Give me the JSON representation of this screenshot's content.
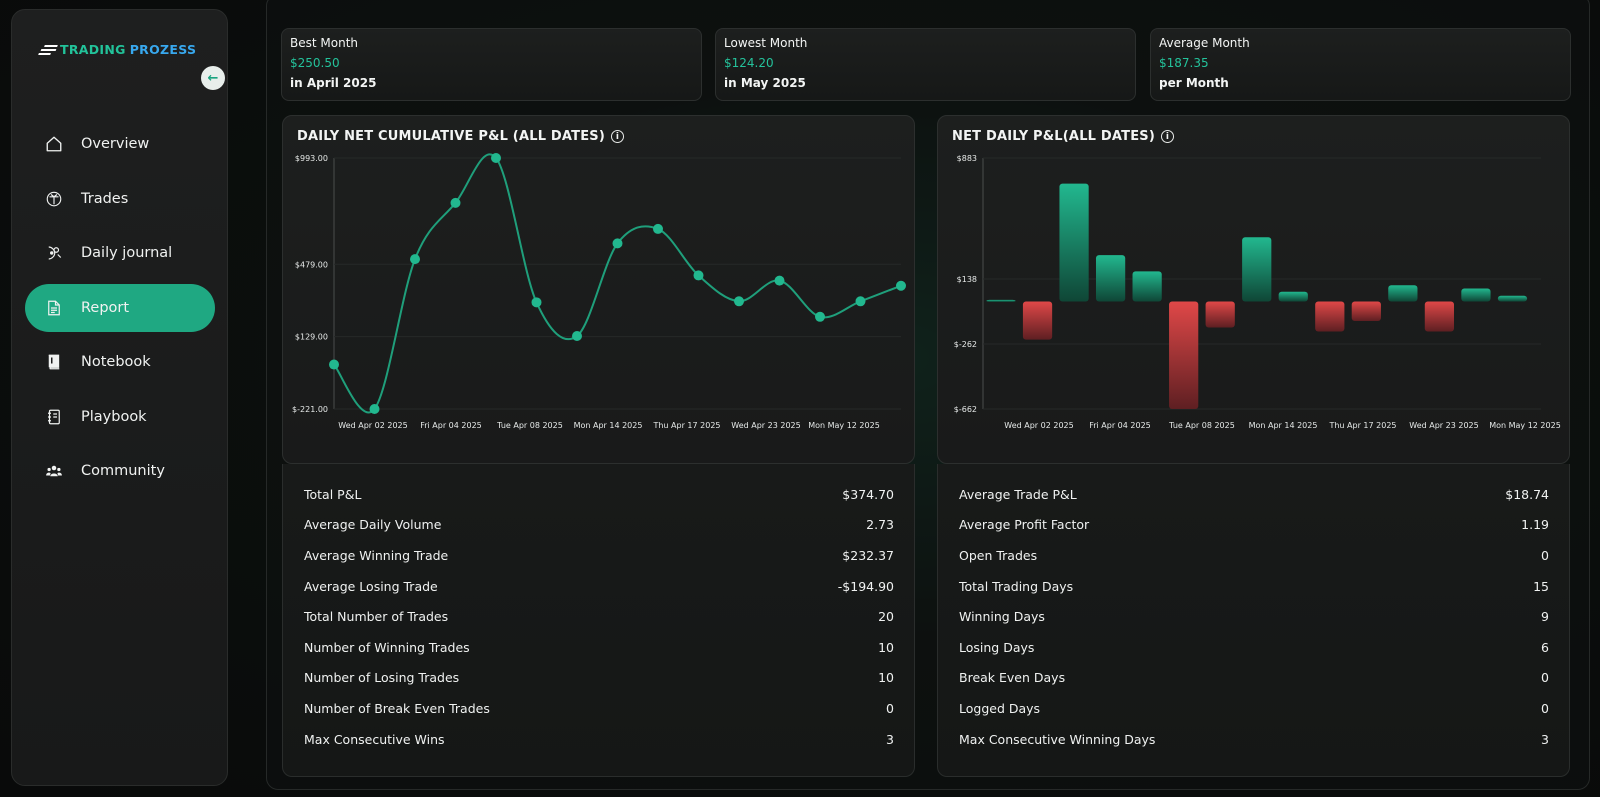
{
  "brand": {
    "part1": "TRADING",
    "part2": "PROZESS"
  },
  "collapse_icon": "arrow-left-icon",
  "nav": [
    {
      "label": "Overview",
      "icon": "home-icon",
      "active": false
    },
    {
      "label": "Trades",
      "icon": "trades-icon",
      "active": false
    },
    {
      "label": "Daily journal",
      "icon": "journal-icon",
      "active": false
    },
    {
      "label": "Report",
      "icon": "report-icon",
      "active": true
    },
    {
      "label": "Notebook",
      "icon": "notebook-icon",
      "active": false
    },
    {
      "label": "Playbook",
      "icon": "playbook-icon",
      "active": false
    },
    {
      "label": "Community",
      "icon": "community-icon",
      "active": false
    }
  ],
  "summary": [
    {
      "title": "Best Month",
      "value": "$250.50",
      "sub": "in April 2025"
    },
    {
      "title": "Lowest Month",
      "value": "$124.20",
      "sub": "in May 2025"
    },
    {
      "title": "Average Month",
      "value": "$187.35",
      "sub": "per Month"
    }
  ],
  "colors": {
    "accent": "#1fa882",
    "positive": "#22b88f",
    "negative": "#e04848",
    "line": "#1f9f7b"
  },
  "chart_data": [
    {
      "type": "line",
      "title": "DAILY NET CUMULATIVE P&L (ALL DATES)",
      "y_ticks": [
        "$993.00",
        "$479.00",
        "$129.00",
        "$-221.00"
      ],
      "ylim": [
        -221,
        993
      ],
      "x_labels": [
        "Wed Apr 02 2025",
        "Fri Apr 04 2025",
        "Tue Apr 08 2025",
        "Mon Apr 14 2025",
        "Thu Apr 17 2025",
        "Wed Apr 23 2025",
        "Mon May 12 2025"
      ],
      "values": [
        -6,
        -221,
        504,
        776,
        993,
        295,
        132,
        580,
        650,
        425,
        300,
        400,
        225,
        300,
        375
      ]
    },
    {
      "type": "bar",
      "title": "NET DAILY P&L(ALL DATES)",
      "y_ticks": [
        "$883",
        "$138",
        "$-262",
        "$-662"
      ],
      "ylim": [
        -662,
        883
      ],
      "x_labels": [
        "Wed Apr 02 2025",
        "Fri Apr 04 2025",
        "Tue Apr 08 2025",
        "Mon Apr 14 2025",
        "Thu Apr 17 2025",
        "Wed Apr 23 2025",
        "Mon May 12 2025"
      ],
      "values": [
        10,
        -235,
        725,
        285,
        185,
        -662,
        -160,
        395,
        60,
        -185,
        -120,
        100,
        -185,
        80,
        35
      ]
    }
  ],
  "stats_left": [
    {
      "label": "Total P&L",
      "value": "$374.70"
    },
    {
      "label": "Average Daily Volume",
      "value": "2.73"
    },
    {
      "label": "Average Winning Trade",
      "value": "$232.37"
    },
    {
      "label": "Average Losing Trade",
      "value": "-$194.90"
    },
    {
      "label": "Total Number of Trades",
      "value": "20"
    },
    {
      "label": "Number of Winning Trades",
      "value": "10"
    },
    {
      "label": "Number of Losing Trades",
      "value": "10"
    },
    {
      "label": "Number of Break Even Trades",
      "value": "0"
    },
    {
      "label": "Max Consecutive Wins",
      "value": "3"
    }
  ],
  "stats_right": [
    {
      "label": "Average Trade P&L",
      "value": "$18.74"
    },
    {
      "label": "Average Profit Factor",
      "value": "1.19"
    },
    {
      "label": "Open Trades",
      "value": "0"
    },
    {
      "label": "Total Trading Days",
      "value": "15"
    },
    {
      "label": "Winning Days",
      "value": "9"
    },
    {
      "label": "Losing Days",
      "value": "6"
    },
    {
      "label": "Break Even Days",
      "value": "0"
    },
    {
      "label": "Logged Days",
      "value": "0"
    },
    {
      "label": "Max Consecutive Winning Days",
      "value": "3"
    }
  ]
}
